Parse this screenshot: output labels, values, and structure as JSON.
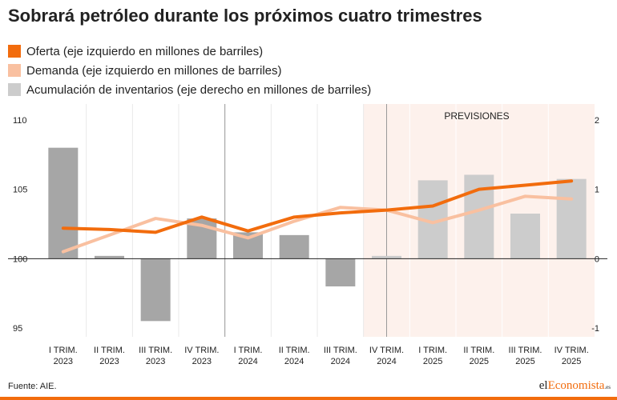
{
  "title": "Sobrará petróleo durante los próximos cuatro trimestres",
  "legend": [
    {
      "label": "Oferta (eje izquierdo en millones de barriles)",
      "color": "#f26c0d"
    },
    {
      "label": "Demanda (eje izquierdo en millones de barriles)",
      "color": "#f9c0a0"
    },
    {
      "label": "Acumulación de inventarios (eje derecho en millones de barriles)",
      "color": "#cccccc"
    }
  ],
  "source": "Fuente: AIE.",
  "brand": {
    "pre": "el",
    "mid": "Economista",
    "sup": ".es"
  },
  "chart_data": {
    "type": "bar+line",
    "categories": [
      [
        "I TRIM.",
        "2023"
      ],
      [
        "II TRIM.",
        "2023"
      ],
      [
        "III TRIM.",
        "2023"
      ],
      [
        "IV TRIM.",
        "2023"
      ],
      [
        "I TRIM.",
        "2024"
      ],
      [
        "II TRIM.",
        "2024"
      ],
      [
        "III TRIM.",
        "2024"
      ],
      [
        "IV TRIM.",
        "2024"
      ],
      [
        "I TRIM.",
        "2025"
      ],
      [
        "II TRIM.",
        "2025"
      ],
      [
        "III TRIM.",
        "2025"
      ],
      [
        "IV TRIM.",
        "2025"
      ]
    ],
    "forecast_label": "PREVISIONES",
    "forecast_start_index": 7.5,
    "shaded_start_index": 7,
    "left_axis": {
      "min": 95,
      "max": 110,
      "ticks": [
        110,
        105,
        100,
        95
      ]
    },
    "right_axis": {
      "min": -1,
      "max": 2,
      "ticks": [
        2,
        1,
        0,
        -1
      ],
      "tick_labels": [
        "2",
        "1",
        "0",
        "-1"
      ]
    },
    "bars": {
      "name": "Acumulación de inventarios",
      "axis": "right",
      "values": [
        1.6,
        0.04,
        -0.9,
        0.58,
        0.38,
        0.34,
        -0.4,
        0.04,
        1.13,
        1.21,
        0.65,
        1.15
      ],
      "colors": [
        "#a6a6a6",
        "#a6a6a6",
        "#a6a6a6",
        "#a6a6a6",
        "#a6a6a6",
        "#a6a6a6",
        "#a6a6a6",
        "#cccccc",
        "#cccccc",
        "#cccccc",
        "#cccccc",
        "#cccccc"
      ]
    },
    "series": [
      {
        "name": "Oferta",
        "axis": "left",
        "color": "#f26c0d",
        "values": [
          102.2,
          102.1,
          101.9,
          103.0,
          102.0,
          103.0,
          103.3,
          103.5,
          103.8,
          105.0,
          105.3,
          105.6
        ]
      },
      {
        "name": "Demanda",
        "axis": "left",
        "color": "#f9c0a0",
        "values": [
          100.5,
          101.7,
          102.9,
          102.4,
          101.5,
          102.7,
          103.7,
          103.5,
          102.6,
          103.5,
          104.5,
          104.3
        ]
      }
    ],
    "grid": "vertical"
  }
}
